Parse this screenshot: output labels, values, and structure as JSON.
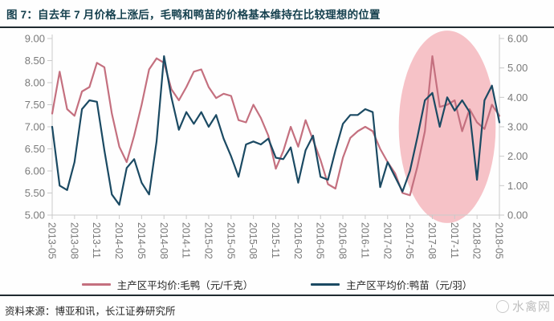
{
  "header": {
    "title": "图 7：自去年 7 月价格上涨后，毛鸭和鸭苗的价格基本维持在比较理想的位置"
  },
  "footer": {
    "source": "资料来源：博亚和讯，长江证券研究所"
  },
  "watermark": {
    "text": "水禽网"
  },
  "chart_data": {
    "type": "line",
    "title": "图 7：自去年 7 月价格上涨后，毛鸭和鸭苗的价格基本维持在比较理想的位置",
    "xlabel": "",
    "grid": false,
    "legend_position": "bottom",
    "x_tick_every": 3,
    "x": [
      "2013-05",
      "2013-06",
      "2013-07",
      "2013-08",
      "2013-09",
      "2013-10",
      "2013-11",
      "2013-12",
      "2014-01",
      "2014-02",
      "2014-03",
      "2014-04",
      "2014-05",
      "2014-06",
      "2014-07",
      "2014-08",
      "2014-09",
      "2014-10",
      "2014-11",
      "2014-12",
      "2015-01",
      "2015-02",
      "2015-03",
      "2015-04",
      "2015-05",
      "2015-06",
      "2015-07",
      "2015-08",
      "2015-09",
      "2015-10",
      "2015-11",
      "2015-12",
      "2016-01",
      "2016-02",
      "2016-03",
      "2016-04",
      "2016-05",
      "2016-06",
      "2016-07",
      "2016-08",
      "2016-09",
      "2016-10",
      "2016-11",
      "2016-12",
      "2017-01",
      "2017-02",
      "2017-03",
      "2017-04",
      "2017-05",
      "2017-06",
      "2017-07",
      "2017-08",
      "2017-09",
      "2017-10",
      "2017-11",
      "2017-12",
      "2018-01",
      "2018-02",
      "2018-03",
      "2018-04",
      "2018-05"
    ],
    "left_axis": {
      "min": 5,
      "max": 9,
      "tick_labels": [
        "9.00",
        "8.50",
        "8.00",
        "7.50",
        "7.00",
        "6.50",
        "6.00",
        "5.50",
        "5.00"
      ]
    },
    "right_axis": {
      "min": 0,
      "max": 6,
      "tick_labels": [
        "6.00",
        "5.00",
        "4.00",
        "3.00",
        "2.00",
        "1.00",
        "0.00"
      ]
    },
    "axis_text_color": "#7a7a7a",
    "axis_line_color": "#c9c9c9",
    "series": [
      {
        "name": "主产区平均价:毛鸭（元/千克）",
        "axis": "left",
        "color": "#c4707f",
        "values": [
          7.3,
          8.25,
          7.4,
          7.25,
          7.8,
          7.9,
          8.45,
          8.35,
          7.3,
          6.55,
          6.2,
          6.8,
          7.5,
          8.3,
          8.55,
          8.45,
          7.85,
          7.6,
          7.9,
          8.25,
          8.3,
          7.9,
          7.65,
          7.75,
          7.7,
          7.15,
          7.1,
          7.5,
          7.2,
          6.8,
          6.05,
          6.45,
          7.0,
          6.55,
          7.15,
          6.7,
          6.25,
          5.7,
          5.6,
          6.3,
          6.75,
          6.9,
          7.0,
          6.9,
          6.5,
          6.2,
          5.95,
          5.5,
          5.45,
          6.1,
          6.9,
          8.6,
          7.45,
          7.5,
          7.6,
          6.9,
          7.4,
          7.1,
          6.95,
          7.5,
          7.25
        ]
      },
      {
        "name": "主产区平均价:鸭苗（元/羽）",
        "axis": "right",
        "color": "#1b4a63",
        "values": [
          3.0,
          1.0,
          0.85,
          1.8,
          3.6,
          3.9,
          3.85,
          2.2,
          0.7,
          0.35,
          1.6,
          1.9,
          1.1,
          0.7,
          2.5,
          5.4,
          4.0,
          2.9,
          3.5,
          3.1,
          3.5,
          3.0,
          3.4,
          2.6,
          2.0,
          1.3,
          2.4,
          2.5,
          2.4,
          2.6,
          1.95,
          1.9,
          2.3,
          1.1,
          2.2,
          2.7,
          1.3,
          1.2,
          2.2,
          3.1,
          3.4,
          3.4,
          3.6,
          3.5,
          0.95,
          1.8,
          1.3,
          0.8,
          1.5,
          2.65,
          3.9,
          4.15,
          3.0,
          4.0,
          3.55,
          3.9,
          3.5,
          1.2,
          3.9,
          4.4,
          3.15
        ]
      }
    ],
    "highlight_ellipse": {
      "x_center": "2017-10",
      "x_radius_months": 6.5,
      "color": "#f6c2c7"
    }
  }
}
